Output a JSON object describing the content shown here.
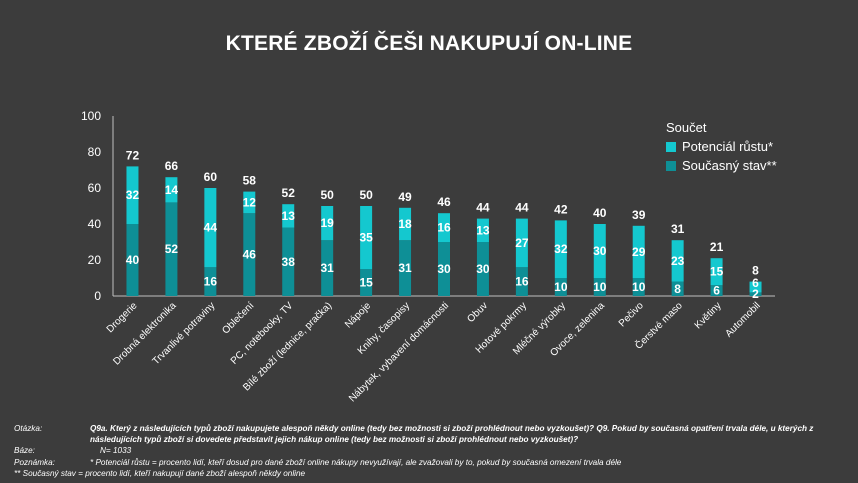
{
  "title": "KTERÉ ZBOŽÍ ČEŠI NAKUPUJÍ ON-LINE",
  "chart_data": {
    "type": "bar",
    "stacked": true,
    "categories": [
      "Drogerie",
      "Drobná elektronika",
      "Trvanlivé potraviny",
      "Oblečení",
      "PC, notebooky, TV",
      "Bílé zboží (lednice, pračka)",
      "Nápoje",
      "Knihy, časopisy",
      "Nábytek, vybavení domácnosti",
      "Obuv",
      "Hotové pokrmy",
      "Mléčné výrobky",
      "Ovoce, zelenina",
      "Pečivo",
      "Čerstvé maso",
      "Květiny",
      "Automobil"
    ],
    "totals": [
      72,
      66,
      60,
      58,
      52,
      50,
      50,
      49,
      46,
      44,
      44,
      42,
      40,
      39,
      31,
      21,
      8
    ],
    "series": [
      {
        "name": "Současný stav**",
        "values": [
          40,
          52,
          16,
          46,
          38,
          31,
          15,
          31,
          30,
          30,
          16,
          10,
          10,
          10,
          8,
          6,
          2
        ]
      },
      {
        "name": "Potenciál růstu*",
        "values": [
          32,
          14,
          44,
          12,
          13,
          19,
          35,
          18,
          16,
          13,
          27,
          32,
          30,
          29,
          23,
          15,
          6
        ]
      }
    ],
    "ylim": [
      0,
      100
    ],
    "yticks": [
      "0",
      "20",
      "40",
      "60",
      "80",
      "100"
    ],
    "legend": {
      "header": "Součet",
      "position": "top-right"
    },
    "colors": {
      "current": "#0e8f96",
      "potential": "#14c8cf",
      "background": "#3c3c3c",
      "axis": "#bfbfbf"
    }
  },
  "notes": {
    "otazka_label": "Otázka:",
    "otazka_text": "Q9a. Který z následujících typů zboží nakupujete alespoň někdy online (tedy bez možnosti si zboží prohlédnout nebo vyzkoušet)? Q9. Pokud by současná opatření trvala déle, u kterých z následujících typů zboží si dovedete představit jejich nákup online (tedy bez možnosti si zboží prohlédnout nebo vyzkoušet)?",
    "baze_label": "Báze:",
    "baze_text": "N= 1033",
    "poznamka_label": "Poznámka:",
    "poznamka_text": "* Potenciál růstu = procento lidí, kteří dosud pro dané zboží online nákupy nevyužívají, ale zvažovali by to, pokud by současná omezení trvala déle",
    "poznamka2": "** Současný stav = procento lidí, kteří nakupují dané zboží alespoň někdy online"
  }
}
